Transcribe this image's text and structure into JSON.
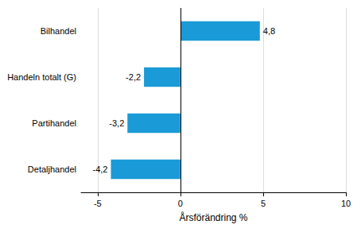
{
  "chart_data": {
    "type": "bar",
    "orientation": "horizontal",
    "categories": [
      "Bilhandel",
      "Handeln totalt (G)",
      "Partihandel",
      "Detaljhandel"
    ],
    "values": [
      4.8,
      -2.2,
      -3.2,
      -4.2
    ],
    "value_labels": [
      "4,8",
      "-2,2",
      "-3,2",
      "-4,2"
    ],
    "data_labels": true,
    "color": "#1a9ad6",
    "x_label": "Årsförändring %",
    "xlim": [
      -6,
      10
    ],
    "xticks": [
      -5,
      0,
      5,
      10
    ],
    "grid": true
  }
}
